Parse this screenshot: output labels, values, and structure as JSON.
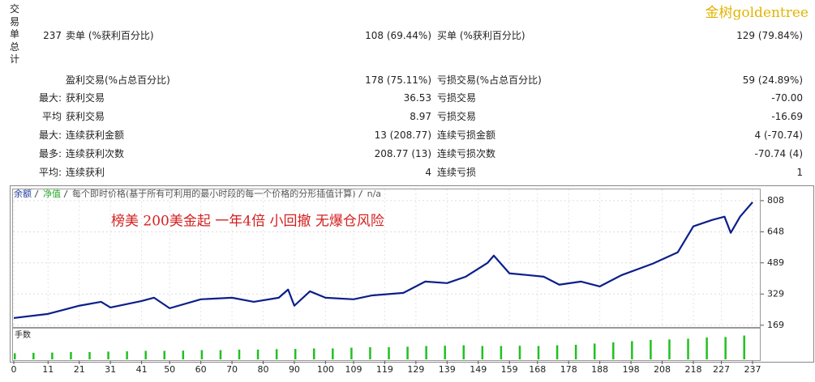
{
  "watermark": "金树goldentree",
  "summary": {
    "side_label": "交易单总计",
    "rows": [
      {
        "prefix": "237",
        "label1": "卖单 (%获利百分比)",
        "value1": "108 (69.44%)",
        "label2": "买单 (%获利百分比)",
        "value2": "129 (79.84%)"
      },
      {
        "label1": "盈利交易(%占总百分比)",
        "value1": "178 (75.11%)",
        "label2": "亏损交易(%占总百分比)",
        "value2": "59 (24.89%)"
      },
      {
        "prefix": "最大:",
        "label1": "获利交易",
        "value1": "36.53",
        "label2": "亏损交易",
        "value2": "-70.00"
      },
      {
        "prefix": "平均",
        "label1": "获利交易",
        "value1": "8.97",
        "label2": "亏损交易",
        "value2": "-16.69"
      },
      {
        "prefix": "最大:",
        "label1": "连续获利金额",
        "value1": "13 (208.77)",
        "label2": "连续亏损金额",
        "value2": "4 (-70.74)"
      },
      {
        "prefix": "最多:",
        "label1": "连续获利次数",
        "value1": "208.77 (13)",
        "label2": "连续亏损次数",
        "value2": "-70.74 (4)"
      },
      {
        "prefix": "平均:",
        "label1": "连续获利",
        "value1": "4",
        "label2": "连续亏损",
        "value2": "1"
      }
    ]
  },
  "chart_data": {
    "type": "line",
    "legend": [
      {
        "text": "余额",
        "color": "#1f3a9e"
      },
      {
        "text": "净值",
        "color": "#22a822"
      },
      {
        "text": "每个即时价格(基于所有可利用的最小时段的每一个价格的分形插值计算)",
        "color": "#555555"
      },
      {
        "text": "n/a",
        "color": "#555555"
      }
    ],
    "annotation": "榜美 200美金起 一年4倍 小回撤 无爆仓风险",
    "series": [
      {
        "name": "余额",
        "color": "#0b1f8a",
        "x": [
          0,
          11,
          21,
          28,
          31,
          41,
          45,
          50,
          60,
          70,
          77,
          85,
          88,
          90,
          95,
          100,
          109,
          115,
          125,
          132,
          139,
          145,
          152,
          154,
          159,
          165,
          170,
          175,
          182,
          188,
          195,
          205,
          213,
          218,
          224,
          228,
          230,
          233,
          237
        ],
        "values": [
          206,
          227,
          269,
          289,
          260,
          293,
          310,
          256,
          302,
          310,
          289,
          310,
          352,
          269,
          343,
          310,
          302,
          322,
          335,
          393,
          385,
          418,
          489,
          526,
          435,
          426,
          418,
          377,
          393,
          368,
          426,
          485,
          543,
          676,
          709,
          726,
          643,
          726,
          800
        ]
      }
    ],
    "xlim": [
      0,
      240
    ],
    "xticks": [
      0,
      11,
      21,
      31,
      41,
      50,
      60,
      70,
      80,
      90,
      100,
      109,
      119,
      129,
      139,
      149,
      159,
      168,
      178,
      188,
      198,
      208,
      218,
      227,
      237
    ],
    "ylim": [
      160,
      870
    ],
    "yticks": [
      169,
      329,
      489,
      648,
      808
    ],
    "grid": true,
    "volume": {
      "name": "手数",
      "color": "#22c022",
      "x": [
        0,
        6,
        12,
        18,
        24,
        30,
        36,
        42,
        48,
        54,
        60,
        66,
        72,
        78,
        84,
        90,
        96,
        102,
        108,
        114,
        120,
        126,
        132,
        138,
        144,
        150,
        156,
        162,
        168,
        174,
        180,
        186,
        192,
        198,
        204,
        210,
        216,
        222,
        228,
        234
      ],
      "values": [
        0.25,
        0.27,
        0.28,
        0.3,
        0.3,
        0.32,
        0.33,
        0.35,
        0.35,
        0.36,
        0.38,
        0.38,
        0.4,
        0.4,
        0.42,
        0.43,
        0.45,
        0.45,
        0.48,
        0.5,
        0.5,
        0.52,
        0.55,
        0.56,
        0.58,
        0.55,
        0.55,
        0.56,
        0.55,
        0.58,
        0.6,
        0.65,
        0.7,
        0.75,
        0.8,
        0.82,
        0.85,
        0.9,
        0.92,
        0.98
      ],
      "ylim": [
        0,
        1.1
      ]
    }
  }
}
